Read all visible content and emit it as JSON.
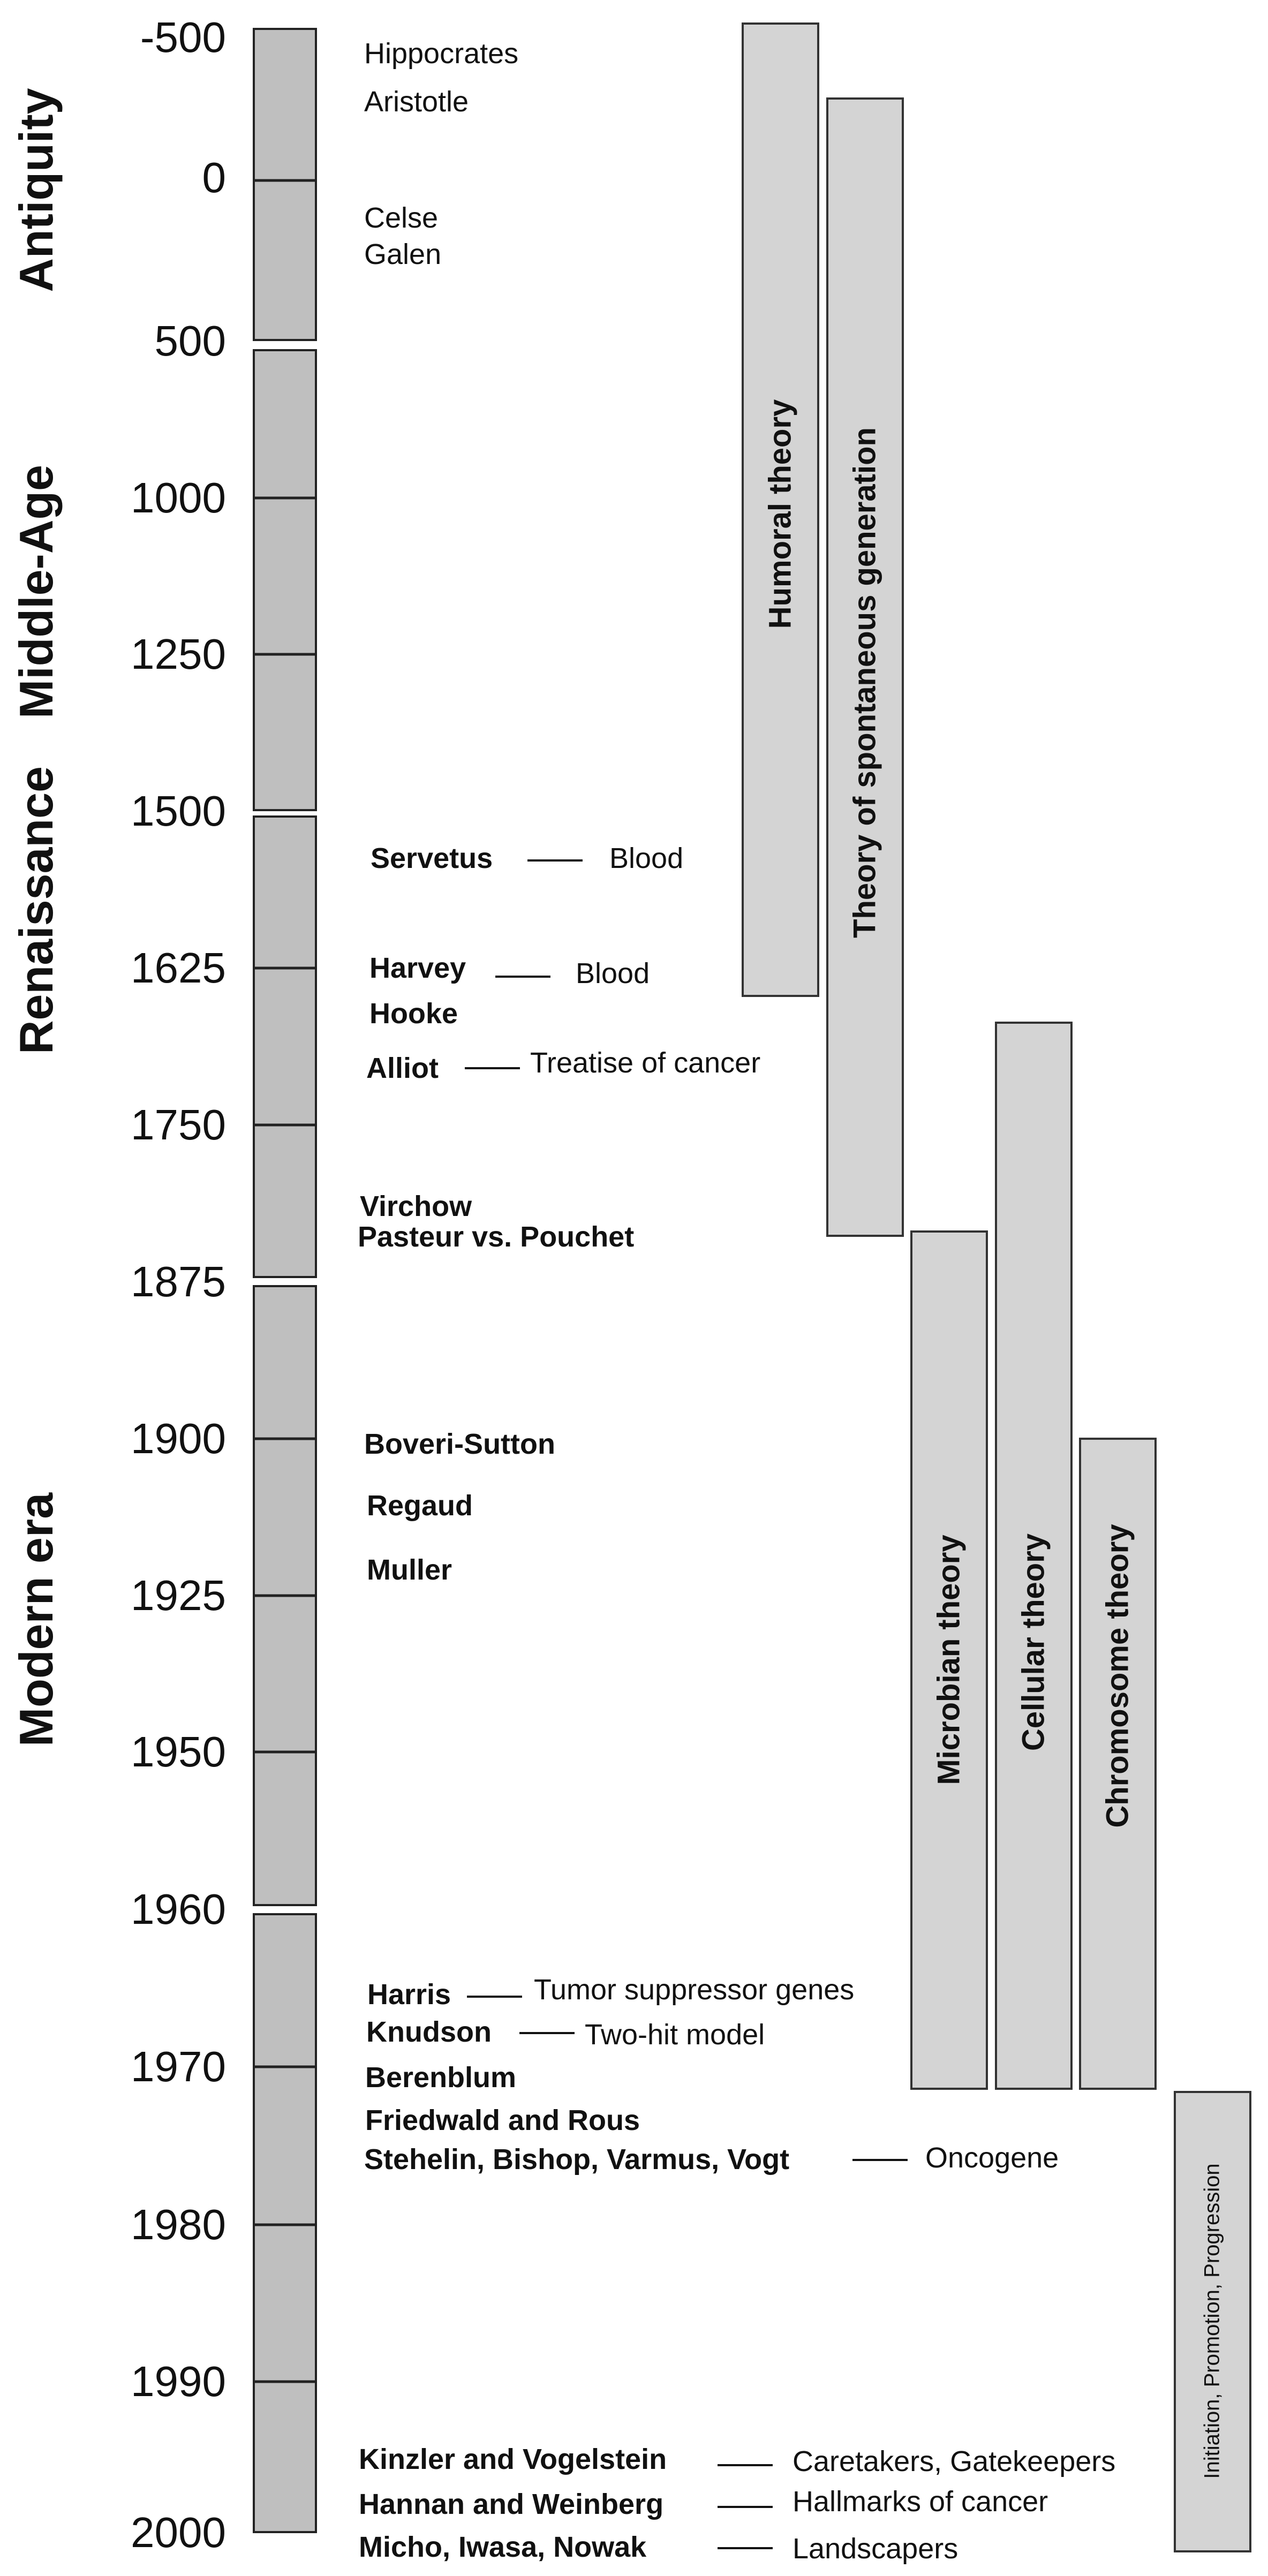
{
  "year_labels": [
    "-500",
    "0",
    "500",
    "1000",
    "1250",
    "1500",
    "1625",
    "1750",
    "1875",
    "1900",
    "1925",
    "1950",
    "1960",
    "1970",
    "1980",
    "1990",
    "2000"
  ],
  "eras": {
    "antiquity": "Antiquity",
    "middle_age": "Middle-Age",
    "renaissance": "Renaissance",
    "modern_era": "Modern era"
  },
  "people": {
    "hippocrates": "Hippocrates",
    "aristotle": "Aristotle",
    "celse": "Celse",
    "galen": "Galen",
    "servetus": "Servetus",
    "harvey": "Harvey",
    "hooke": "Hooke",
    "alliot": "Alliot",
    "virchow": "Virchow",
    "pasteur_pouchet": "Pasteur vs. Pouchet",
    "boveri_sutton": "Boveri-Sutton",
    "regaud": "Regaud",
    "muller": "Muller",
    "harris": "Harris",
    "knudson": "Knudson",
    "berenblum": "Berenblum",
    "friedwald_rous": "Friedwald and Rous",
    "stehelin": "Stehelin, Bishop, Varmus, Vogt",
    "kinzler": "Kinzler and Vogelstein",
    "hannan": "Hannan and Weinberg",
    "micho": "Micho, Iwasa, Nowak"
  },
  "concepts": {
    "servetus": "Blood",
    "harvey": "Blood",
    "alliot": "Treatise of cancer",
    "harris": "Tumor suppressor genes",
    "knudson": "Two-hit model",
    "stehelin": "Oncogene",
    "kinzler": "Caretakers, Gatekeepers",
    "hannan": "Hallmarks of cancer",
    "micho": "Landscapers"
  },
  "theories": {
    "humoral": "Humoral theory",
    "spontaneous": "Theory of spontaneous generation",
    "microbian": "Microbian  theory",
    "cellular": "Cellular theory",
    "chromosome": "Chromosome  theory",
    "initiation": "Initiation, Promotion, Progression"
  }
}
